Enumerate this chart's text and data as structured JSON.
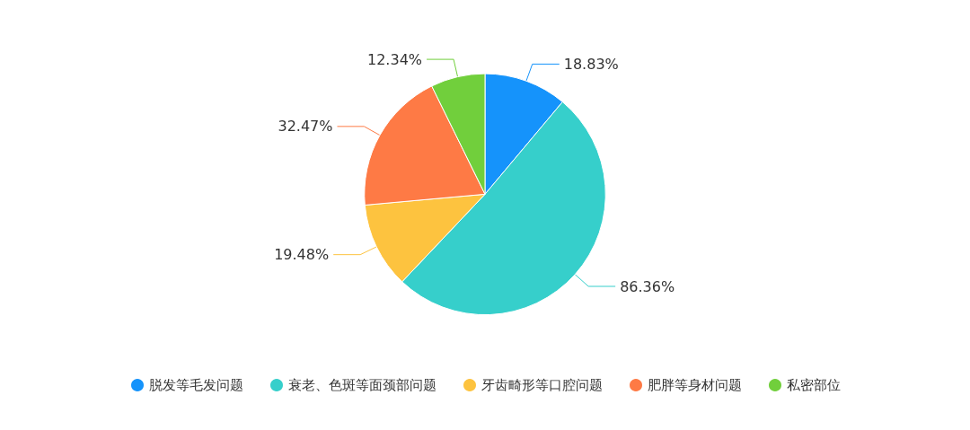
{
  "chart_data": {
    "type": "pie",
    "categories": [
      "脱发等毛发问题",
      "衰老、色斑等面颈部问题",
      "牙齿畸形等口腔问题",
      "肥胖等身材问题",
      "私密部位"
    ],
    "values": [
      18.83,
      86.36,
      19.48,
      32.47,
      12.34
    ],
    "colors": [
      "#1593fb",
      "#36cfcb",
      "#fdc33f",
      "#fe7a45",
      "#71cf3c"
    ],
    "value_labels": [
      "18.83%",
      "86.36%",
      "19.48%",
      "32.47%",
      "12.34%"
    ],
    "legend": "bottom"
  }
}
